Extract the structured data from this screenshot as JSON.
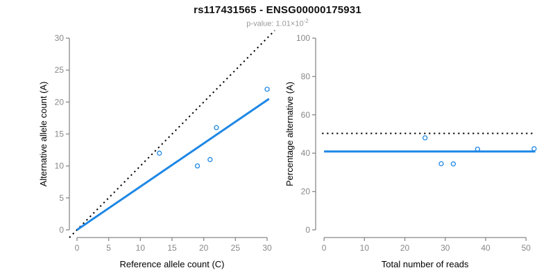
{
  "header": {
    "title": "rs117431565 - ENSG00000175931",
    "pvalue_prefix": "p-value: ",
    "pvalue_mantissa": "1.01×10",
    "pvalue_exponent": "-2"
  },
  "colors": {
    "accent_blue": "#1E87E5",
    "line_black": "#000000",
    "axis_gray": "#898989",
    "tick_label_gray": "#878787",
    "title_black": "#111111",
    "subtitle_gray": "#989898",
    "background": "#ffffff"
  },
  "chart_data": [
    {
      "type": "scatter",
      "name": "allele-counts",
      "xlabel": "Reference allele count (C)",
      "ylabel": "Alternative allele count (A)",
      "xlim": [
        0,
        30
      ],
      "ylim": [
        0,
        30
      ],
      "xticks": [
        0,
        5,
        10,
        15,
        20,
        25,
        30
      ],
      "yticks": [
        0,
        5,
        10,
        15,
        20,
        25,
        30
      ],
      "grid": false,
      "legend": "none",
      "points": [
        [
          13,
          12
        ],
        [
          19,
          10
        ],
        [
          21,
          11
        ],
        [
          22,
          16
        ],
        [
          30,
          22
        ]
      ],
      "lines": [
        {
          "name": "identity-line",
          "style": "dotted",
          "color": "#000000",
          "width": 2,
          "from": [
            -1.2,
            -1.2
          ],
          "to": [
            31.2,
            31.2
          ]
        },
        {
          "name": "regression-line",
          "style": "solid",
          "color": "#1E87E5",
          "width": 3,
          "from": [
            0,
            0
          ],
          "to": [
            30.3,
            20.5
          ]
        }
      ]
    },
    {
      "type": "scatter",
      "name": "percentage-alternative",
      "xlabel": "Total number of reads",
      "ylabel": "Percentage alternative (A)",
      "xlim": [
        0,
        52
      ],
      "ylim": [
        0,
        100
      ],
      "xticks": [
        0,
        10,
        20,
        30,
        40,
        50
      ],
      "yticks": [
        0,
        20,
        40,
        60,
        80,
        100
      ],
      "grid": false,
      "legend": "none",
      "points": [
        [
          25,
          48
        ],
        [
          29,
          34.5
        ],
        [
          32,
          34.4
        ],
        [
          38,
          42.1
        ],
        [
          52,
          42.3
        ]
      ],
      "lines": [
        {
          "name": "expected-50-percent-line",
          "style": "dotted",
          "color": "#000000",
          "width": 2,
          "from": [
            -0.5,
            50.3
          ],
          "to": [
            52.3,
            50.3
          ]
        },
        {
          "name": "mean-percentage-line",
          "style": "solid",
          "color": "#1E87E5",
          "width": 3,
          "from": [
            0,
            40.9
          ],
          "to": [
            52.3,
            40.9
          ]
        }
      ]
    }
  ]
}
